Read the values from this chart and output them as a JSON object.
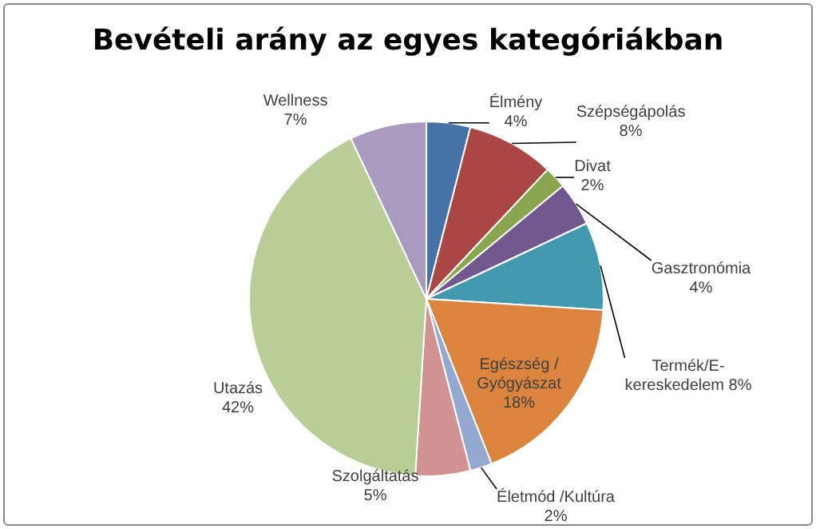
{
  "chart_data": {
    "type": "pie",
    "title": "Bevételi arány az egyes kategóriákban",
    "categories": [
      "Élmény",
      "Szépségápolás",
      "Divat",
      "Gasztronómia",
      "Termék/E-kereskedelem",
      "Egészség / Gyógyászat",
      "Életmód /Kultúra",
      "Szolgáltatás",
      "Utazás",
      "Wellness"
    ],
    "values": [
      4,
      8,
      2,
      4,
      8,
      18,
      2,
      5,
      42,
      7
    ],
    "value_labels": [
      "4%",
      "8%",
      "2%",
      "4%",
      "8%",
      "18%",
      "2%",
      "5%",
      "42%",
      "7%"
    ],
    "colors": [
      "#4572a7",
      "#aa4643",
      "#89a54e",
      "#71588f",
      "#4198af",
      "#db843d",
      "#93a9cf",
      "#d19392",
      "#b9cd96",
      "#a99bbd"
    ],
    "legend": false
  }
}
